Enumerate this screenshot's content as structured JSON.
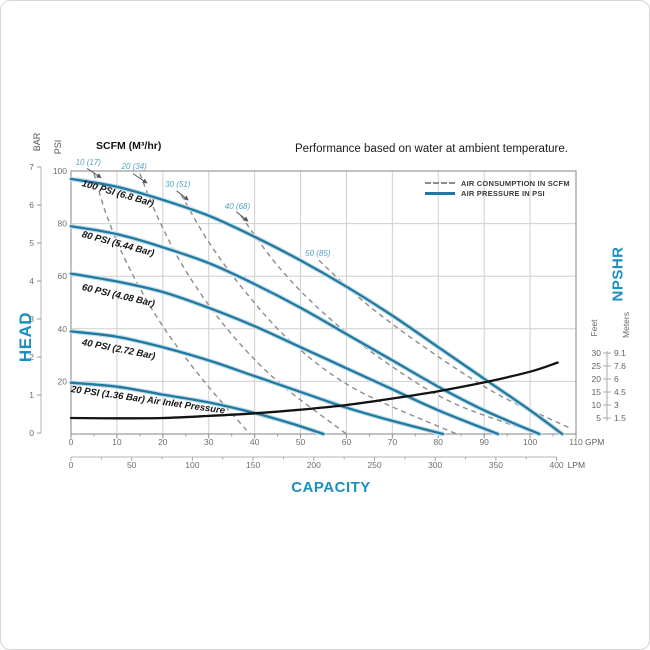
{
  "title": "Performance based on water at ambient temperature.",
  "legend": {
    "items": [
      {
        "label": "AIR CONSUMPTION IN SCFM",
        "style": "dashed"
      },
      {
        "label": "AIR PRESSURE IN PSI",
        "style": "solid"
      }
    ]
  },
  "labels": {
    "head": "HEAD",
    "capacity": "CAPACITY",
    "npshr": "NPSHR",
    "bar": "BAR",
    "psi": "PSI",
    "feet": "Feet",
    "meters": "Meters",
    "scfm_header": "SCFM (M³/hr)",
    "gpm_unit": "GPM",
    "lpm_unit": "LPM"
  },
  "colors": {
    "curve_blue": "#21799f",
    "halo_blue": "#c2dde9",
    "axis_label_blue": "#1a8fc3",
    "scfm_label_blue": "#57a2c6",
    "dashed_gray": "#8c8c8c",
    "npshr_black": "#131313",
    "grid": "#cfcfcf",
    "frame": "#9a9a9a",
    "tick_text": "#6e6e6e"
  },
  "chart_data": {
    "type": "line",
    "title": "Performance based on water at ambient temperature.",
    "x_axis": {
      "label": "CAPACITY",
      "primary_unit": "GPM",
      "primary_ticks": [
        0,
        10,
        20,
        30,
        40,
        50,
        60,
        70,
        80,
        90,
        100,
        110
      ],
      "secondary_unit": "LPM",
      "secondary_ticks": [
        0,
        50,
        100,
        150,
        200,
        250,
        300,
        350,
        400
      ],
      "range_gpm": [
        0,
        110
      ],
      "range_lpm": [
        0,
        416
      ]
    },
    "y_axis": {
      "label": "HEAD",
      "bar_unit": "BAR",
      "bar_ticks": [
        0,
        1,
        2,
        3,
        4,
        5,
        6,
        7
      ],
      "psi_unit": "PSI",
      "psi_ticks": [
        20,
        40,
        60,
        80,
        100
      ],
      "range_psi": [
        0,
        100
      ],
      "range_bar": [
        0,
        7
      ]
    },
    "right_axis": {
      "label": "NPSHR",
      "columns": [
        "Feet",
        "Meters"
      ],
      "rows": [
        {
          "feet": "30",
          "meters": "9.1"
        },
        {
          "feet": "25",
          "meters": "7.6"
        },
        {
          "feet": "20",
          "meters": "6"
        },
        {
          "feet": "15",
          "meters": "4.5"
        },
        {
          "feet": "10",
          "meters": "3"
        },
        {
          "feet": "5",
          "meters": "1.5"
        }
      ],
      "feet_range": [
        5,
        30
      ]
    },
    "scfm_header": "SCFM (M³/hr)",
    "pressure_curves": [
      {
        "name": "air-pressure-100",
        "label": "100 PSI (6.8 Bar)",
        "label_pos": [
          2.5,
          95.5
        ],
        "label_angle": 16,
        "points": [
          [
            0,
            97
          ],
          [
            10,
            94
          ],
          [
            20,
            89
          ],
          [
            30,
            83
          ],
          [
            40,
            75
          ],
          [
            50,
            66
          ],
          [
            60,
            56
          ],
          [
            70,
            45
          ],
          [
            80,
            33
          ],
          [
            90,
            21
          ],
          [
            100,
            9
          ],
          [
            107,
            0
          ]
        ]
      },
      {
        "name": "air-pressure-80",
        "label": "80 PSI (5.44 Bar)",
        "label_pos": [
          2.5,
          76
        ],
        "label_angle": 15,
        "points": [
          [
            0,
            79
          ],
          [
            10,
            76
          ],
          [
            20,
            71
          ],
          [
            30,
            65
          ],
          [
            40,
            57
          ],
          [
            50,
            48
          ],
          [
            60,
            38
          ],
          [
            70,
            28
          ],
          [
            80,
            18
          ],
          [
            90,
            9
          ],
          [
            102,
            0
          ]
        ]
      },
      {
        "name": "air-pressure-60",
        "label": "60 PSI (4.08 Bar)",
        "label_pos": [
          2.5,
          56
        ],
        "label_angle": 13,
        "points": [
          [
            0,
            61
          ],
          [
            10,
            58
          ],
          [
            20,
            54
          ],
          [
            30,
            48
          ],
          [
            40,
            41
          ],
          [
            50,
            33
          ],
          [
            60,
            25
          ],
          [
            70,
            17
          ],
          [
            80,
            9
          ],
          [
            93,
            0
          ]
        ]
      },
      {
        "name": "air-pressure-40",
        "label": "40 PSI (2.72 Bar)",
        "label_pos": [
          2.5,
          35
        ],
        "label_angle": 11,
        "points": [
          [
            0,
            39
          ],
          [
            10,
            37
          ],
          [
            20,
            33
          ],
          [
            30,
            28
          ],
          [
            40,
            22
          ],
          [
            50,
            16
          ],
          [
            60,
            10
          ],
          [
            70,
            5
          ],
          [
            81,
            0
          ]
        ]
      },
      {
        "name": "air-pressure-20",
        "label": "20 PSI (1.36 Bar) Air Inlet Pressure",
        "label_pos": [
          0,
          17
        ],
        "label_angle": 8,
        "points": [
          [
            0,
            19.5
          ],
          [
            10,
            18
          ],
          [
            20,
            15
          ],
          [
            30,
            12
          ],
          [
            40,
            8
          ],
          [
            48,
            4
          ],
          [
            55,
            0
          ]
        ]
      }
    ],
    "consumption_curves": [
      {
        "name": "air-consumption-10",
        "label": "10 (17)",
        "label_pos": [
          1,
          103
        ],
        "arrow": [
          [
            3.5,
            101
          ],
          [
            6.5,
            97.5
          ]
        ],
        "points": [
          [
            5,
            99
          ],
          [
            8,
            82
          ],
          [
            13,
            62
          ],
          [
            20,
            41
          ],
          [
            29,
            20
          ],
          [
            39,
            0
          ]
        ]
      },
      {
        "name": "air-consumption-20",
        "label": "20 (34)",
        "label_pos": [
          11,
          101.5
        ],
        "arrow": [
          [
            13.5,
            99
          ],
          [
            16.5,
            95.5
          ]
        ],
        "points": [
          [
            15,
            99
          ],
          [
            19,
            82
          ],
          [
            25,
            62
          ],
          [
            34,
            40
          ],
          [
            45,
            20
          ],
          [
            60,
            0
          ]
        ]
      },
      {
        "name": "air-consumption-30",
        "label": "30 (51)",
        "label_pos": [
          20.5,
          94.5
        ],
        "arrow": [
          [
            23,
            92.5
          ],
          [
            25.5,
            89
          ]
        ],
        "points": [
          [
            24,
            91
          ],
          [
            30,
            73
          ],
          [
            38,
            54
          ],
          [
            48,
            35
          ],
          [
            62,
            17
          ],
          [
            84,
            0
          ]
        ]
      },
      {
        "name": "air-consumption-40",
        "label": "40 (68)",
        "label_pos": [
          33.5,
          86.5
        ],
        "arrow": [
          [
            36,
            84.5
          ],
          [
            38.5,
            81
          ]
        ],
        "points": [
          [
            37,
            83
          ],
          [
            45,
            64
          ],
          [
            55,
            46
          ],
          [
            68,
            28
          ],
          [
            83,
            12
          ],
          [
            102,
            0
          ]
        ]
      },
      {
        "name": "air-consumption-50",
        "label": "50 (85)",
        "label_pos": [
          51,
          68.5
        ],
        "arrow": null,
        "points": [
          [
            54,
            66
          ],
          [
            64,
            50
          ],
          [
            77,
            33
          ],
          [
            92,
            16
          ],
          [
            104,
            6
          ],
          [
            109,
            2
          ]
        ]
      }
    ],
    "npshr_curve": {
      "name": "npshr",
      "unit": "feet",
      "points": [
        [
          0,
          5
        ],
        [
          10,
          4.9
        ],
        [
          20,
          5
        ],
        [
          30,
          5.8
        ],
        [
          40,
          6.8
        ],
        [
          50,
          8.2
        ],
        [
          60,
          10
        ],
        [
          70,
          12.5
        ],
        [
          80,
          15.3
        ],
        [
          90,
          18.7
        ],
        [
          100,
          22.8
        ],
        [
          106,
          26.3
        ]
      ]
    }
  }
}
